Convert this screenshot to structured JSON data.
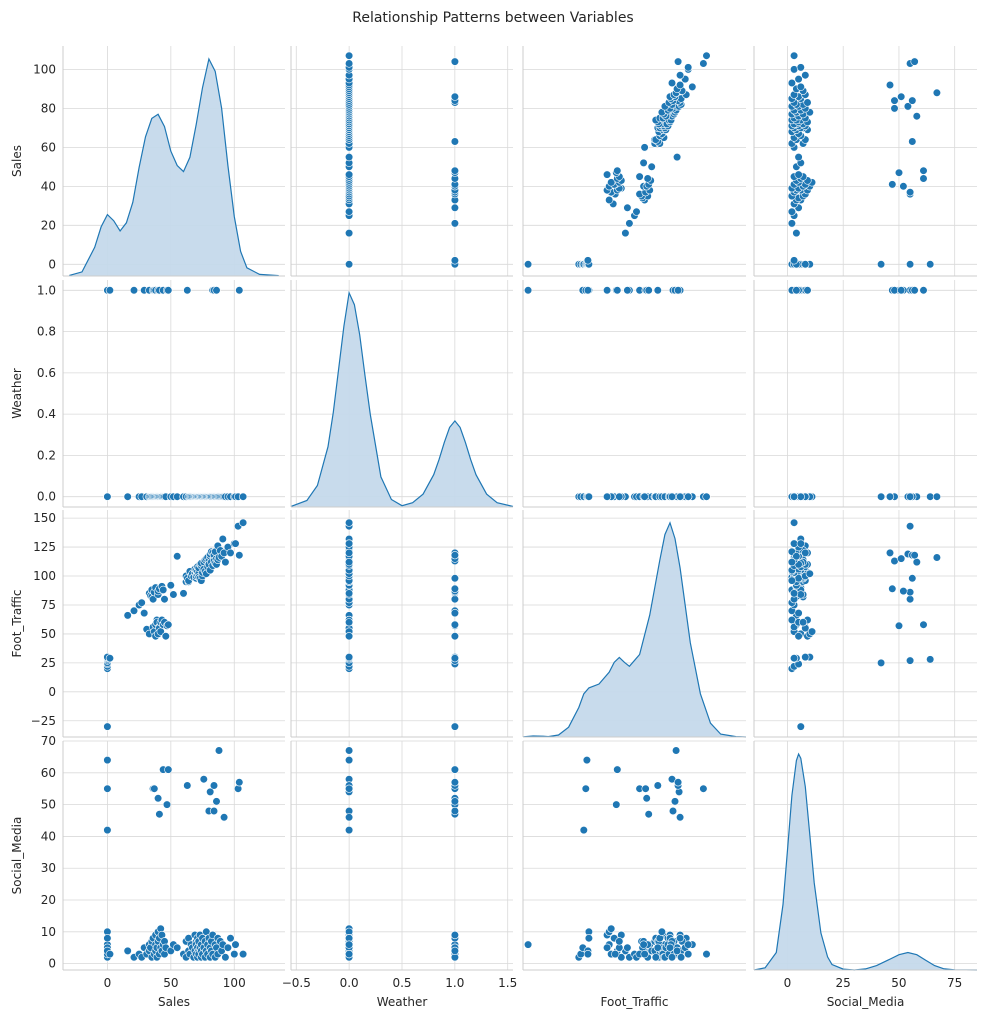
{
  "chart_data": {
    "type": "scatter",
    "kind": "pairplot",
    "title": "Relationship Patterns between Variables",
    "variables": [
      "Sales",
      "Weather",
      "Foot_Traffic",
      "Social_Media"
    ],
    "diagonal": "kde",
    "grid": true,
    "style": "seaborn whitegrid",
    "colors": {
      "marker": "#1f77b4",
      "marker_edge": "#ffffff",
      "kde_fill": "#c5d9eb",
      "kde_line": "#1f77b4",
      "grid": "#d9d9d9",
      "spine": "#cccccc"
    },
    "axes": {
      "Sales": {
        "lim": [
          -35,
          140
        ],
        "ticks": [
          0,
          50,
          100
        ],
        "tick_labels": [
          "0",
          "50",
          "100"
        ],
        "row_lim": [
          -6,
          112
        ],
        "row_ticks": [
          0,
          20,
          40,
          60,
          80,
          100
        ],
        "row_tick_labels": [
          "0",
          "20",
          "40",
          "60",
          "80",
          "100"
        ]
      },
      "Weather": {
        "lim": [
          -0.55,
          1.55
        ],
        "ticks": [
          -0.5,
          0,
          0.5,
          1.0,
          1.5
        ],
        "tick_labels": [
          "−0.5",
          "0.0",
          "0.5",
          "1.0",
          "1.5"
        ],
        "row_lim": [
          -0.05,
          1.05
        ],
        "row_ticks": [
          0,
          0.2,
          0.4,
          0.6,
          0.8,
          1.0
        ],
        "row_tick_labels": [
          "0.0",
          "0.2",
          "0.4",
          "0.6",
          "0.8",
          "1.0"
        ]
      },
      "Foot_Traffic": {
        "lim": [
          -35,
          185
        ],
        "ticks": [],
        "tick_labels": [],
        "row_lim": [
          -39,
          157
        ],
        "row_ticks": [
          -25,
          0,
          25,
          50,
          75,
          100,
          125,
          150
        ],
        "row_tick_labels": [
          "−25",
          "0",
          "25",
          "50",
          "75",
          "100",
          "125",
          "150"
        ]
      },
      "Social_Media": {
        "lim": [
          -15,
          85
        ],
        "ticks": [
          0,
          25,
          50,
          75
        ],
        "tick_labels": [
          "0",
          "25",
          "50",
          "75"
        ],
        "row_lim": [
          -2,
          70
        ],
        "row_ticks": [
          0,
          10,
          20,
          30,
          40,
          50,
          60,
          70
        ],
        "row_tick_labels": [
          "0",
          "10",
          "20",
          "30",
          "40",
          "50",
          "60",
          "70"
        ]
      }
    },
    "kde": {
      "Sales": {
        "x": [
          -30,
          -20,
          -10,
          -5,
          0,
          5,
          10,
          15,
          20,
          25,
          30,
          35,
          40,
          45,
          50,
          55,
          60,
          65,
          70,
          75,
          80,
          85,
          90,
          95,
          100,
          105,
          110,
          120,
          135
        ],
        "y": [
          0.3,
          2,
          14,
          24,
          30,
          27,
          22,
          26,
          36,
          53,
          68,
          77,
          79,
          73,
          61,
          54,
          51,
          58,
          74,
          92,
          106,
          100,
          82,
          54,
          29,
          12,
          4,
          0.8,
          0.2
        ]
      },
      "Weather": {
        "x": [
          -0.55,
          -0.4,
          -0.3,
          -0.2,
          -0.15,
          -0.1,
          -0.05,
          0,
          0.05,
          0.1,
          0.15,
          0.2,
          0.3,
          0.4,
          0.5,
          0.6,
          0.7,
          0.8,
          0.85,
          0.9,
          0.95,
          1.0,
          1.05,
          1.1,
          1.15,
          1.2,
          1.3,
          1.4,
          1.55
        ],
        "y": [
          0.003,
          0.03,
          0.1,
          0.28,
          0.44,
          0.64,
          0.84,
          0.995,
          0.94,
          0.8,
          0.61,
          0.43,
          0.14,
          0.035,
          0.006,
          0.02,
          0.06,
          0.15,
          0.22,
          0.3,
          0.37,
          0.4,
          0.37,
          0.3,
          0.22,
          0.15,
          0.06,
          0.02,
          0.003
        ]
      },
      "Foot_Traffic": {
        "x": [
          -35,
          -25,
          -15,
          -10,
          0,
          10,
          20,
          25,
          30,
          40,
          50,
          55,
          60,
          65,
          70,
          80,
          90,
          100,
          105,
          110,
          115,
          120,
          130,
          140,
          150,
          160,
          175,
          185
        ],
        "y": [
          0.01,
          0.05,
          0.04,
          0.02,
          0.1,
          0.5,
          1.5,
          2.2,
          2.5,
          2.7,
          3.3,
          3.8,
          4.05,
          3.8,
          3.6,
          4.2,
          6.2,
          9.0,
          10.3,
          10.9,
          10.1,
          8.6,
          4.8,
          2.2,
          0.7,
          0.15,
          0.02,
          0.0
        ]
      },
      "Social_Media": {
        "x": [
          -15,
          -10,
          -5,
          -2,
          0,
          2,
          4,
          5,
          6,
          8,
          10,
          12,
          15,
          18,
          20,
          25,
          30,
          35,
          40,
          45,
          50,
          54,
          58,
          62,
          66,
          70,
          75,
          85
        ],
        "y": [
          0.0,
          0.01,
          0.08,
          0.3,
          0.55,
          0.8,
          0.96,
          0.99,
          0.97,
          0.84,
          0.62,
          0.4,
          0.17,
          0.06,
          0.025,
          0.004,
          0.0,
          0.005,
          0.02,
          0.045,
          0.07,
          0.08,
          0.07,
          0.045,
          0.02,
          0.006,
          0.001,
          0.0
        ]
      }
    },
    "points": {
      "Sales": [
        0,
        0,
        0,
        0,
        0,
        0,
        0,
        0,
        0,
        0,
        2,
        16,
        21,
        25,
        27,
        29,
        31,
        33,
        33,
        34,
        35,
        35,
        36,
        36,
        37,
        37,
        38,
        38,
        38,
        39,
        39,
        40,
        40,
        40,
        41,
        41,
        41,
        42,
        42,
        43,
        43,
        44,
        44,
        45,
        45,
        46,
        47,
        48,
        50,
        52,
        55,
        60,
        62,
        62,
        63,
        64,
        64,
        65,
        66,
        67,
        68,
        69,
        69,
        70,
        70,
        70,
        71,
        71,
        71,
        72,
        72,
        72,
        73,
        73,
        74,
        74,
        74,
        75,
        75,
        76,
        76,
        77,
        77,
        78,
        78,
        79,
        79,
        80,
        80,
        81,
        81,
        81,
        82,
        82,
        83,
        83,
        84,
        84,
        85,
        85,
        86,
        86,
        87,
        87,
        88,
        89,
        90,
        91,
        92,
        93,
        95,
        97,
        100,
        101,
        103,
        104,
        107
      ],
      "Weather": [
        1,
        0,
        0,
        1,
        0,
        1,
        0,
        0,
        0,
        1,
        1,
        0,
        1,
        0,
        0,
        1,
        0,
        0,
        1,
        0,
        0,
        0,
        1,
        0,
        0,
        1,
        0,
        0,
        1,
        0,
        0,
        0,
        1,
        0,
        0,
        1,
        0,
        0,
        0,
        0,
        0,
        1,
        0,
        0,
        0,
        0,
        1,
        1,
        0,
        0,
        0,
        0,
        0,
        0,
        1,
        0,
        0,
        0,
        0,
        0,
        0,
        0,
        0,
        0,
        0,
        0,
        0,
        0,
        0,
        0,
        0,
        0,
        0,
        0,
        0,
        0,
        0,
        0,
        0,
        0,
        0,
        0,
        0,
        0,
        0,
        0,
        0,
        0,
        0,
        0,
        0,
        0,
        0,
        0,
        1,
        0,
        0,
        1,
        0,
        0,
        1,
        0,
        0,
        0,
        0,
        0,
        0,
        0,
        0,
        0,
        0,
        0,
        0,
        0,
        0,
        1,
        0
      ],
      "Foot_Traffic": [
        -30,
        20,
        22,
        24,
        25,
        27,
        28,
        29,
        30,
        30,
        29,
        66,
        70,
        75,
        77,
        68,
        54,
        50,
        85,
        83,
        88,
        82,
        80,
        56,
        52,
        86,
        90,
        58,
        48,
        62,
        60,
        84,
        87,
        50,
        56,
        89,
        55,
        60,
        52,
        91,
        62,
        58,
        88,
        80,
        60,
        48,
        57,
        58,
        92,
        84,
        117,
        85,
        95,
        100,
        98,
        95,
        96,
        104,
        100,
        102,
        99,
        103,
        106,
        98,
        100,
        105,
        101,
        104,
        108,
        102,
        99,
        107,
        110,
        98,
        96,
        109,
        111,
        100,
        103,
        112,
        106,
        114,
        104,
        115,
        102,
        108,
        116,
        113,
        110,
        117,
        105,
        119,
        112,
        121,
        120,
        109,
        118,
        113,
        111,
        121,
        115,
        110,
        126,
        114,
        116,
        122,
        117,
        132,
        120,
        112,
        125,
        120,
        128,
        128,
        143,
        118,
        146
      ],
      "Social_Media": [
        6,
        2,
        3,
        5,
        42,
        55,
        64,
        4,
        10,
        8,
        3,
        4,
        2,
        3,
        2,
        5,
        3,
        6,
        4,
        5,
        2,
        7,
        55,
        8,
        3,
        55,
        6,
        4,
        9,
        2,
        5,
        7,
        52,
        10,
        3,
        47,
        8,
        5,
        11,
        4,
        9,
        61,
        6,
        3,
        7,
        5,
        50,
        61,
        4,
        6,
        5,
        3,
        7,
        2,
        56,
        4,
        8,
        3,
        6,
        5,
        2,
        9,
        4,
        7,
        3,
        6,
        5,
        2,
        8,
        4,
        7,
        3,
        9,
        5,
        2,
        6,
        4,
        8,
        3,
        58,
        5,
        7,
        2,
        4,
        10,
        6,
        3,
        48,
        8,
        5,
        2,
        54,
        7,
        4,
        9,
        3,
        56,
        48,
        6,
        2,
        51,
        5,
        8,
        3,
        67,
        7,
        4,
        6,
        46,
        2,
        5,
        8,
        3,
        6,
        55,
        57,
        3
      ]
    }
  }
}
